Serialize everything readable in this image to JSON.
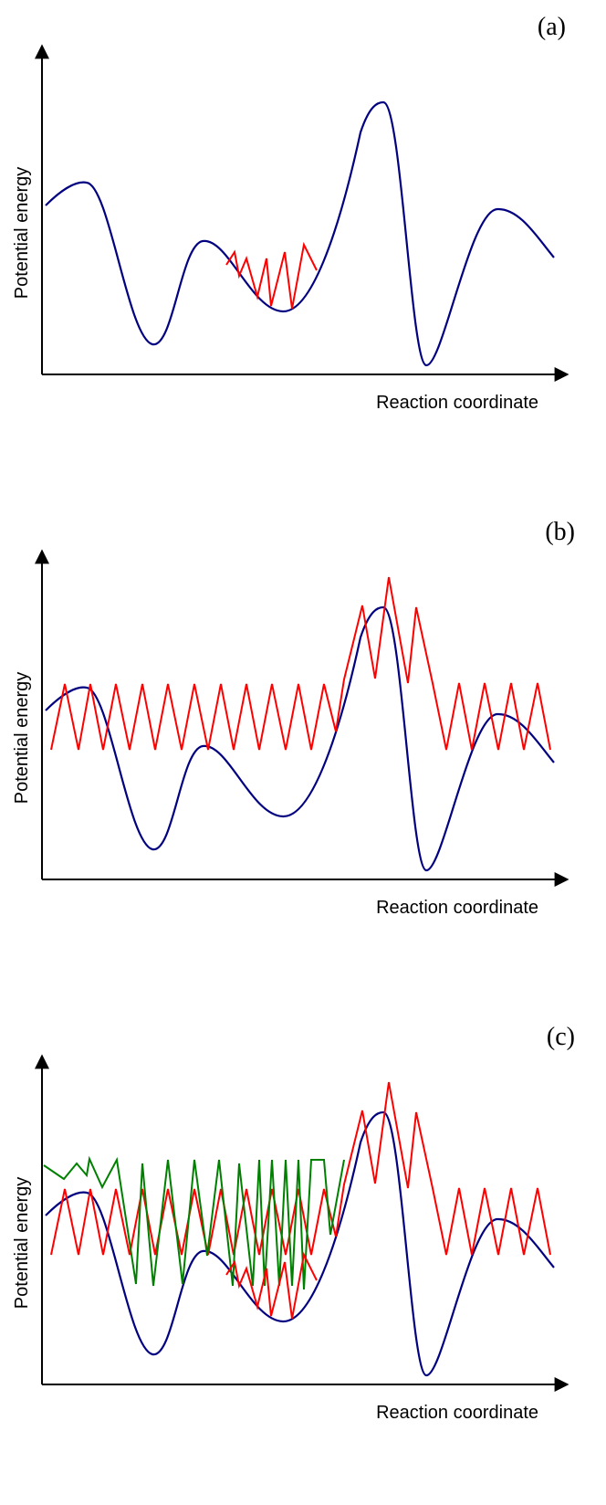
{
  "colors": {
    "axis": "#000000",
    "potential_curve": "#000080",
    "trajectory_red": "#ff0000",
    "trajectory_green": "#008000"
  },
  "panels": [
    {
      "tag": "(a)",
      "ylabel": "Potential energy",
      "xlabel": "Reaction coordinate"
    },
    {
      "tag": "(b)",
      "ylabel": "Potential energy",
      "xlabel": "Reaction coordinate"
    },
    {
      "tag": "(c)",
      "ylabel": "Potential energy",
      "xlabel": "Reaction coordinate"
    }
  ]
}
